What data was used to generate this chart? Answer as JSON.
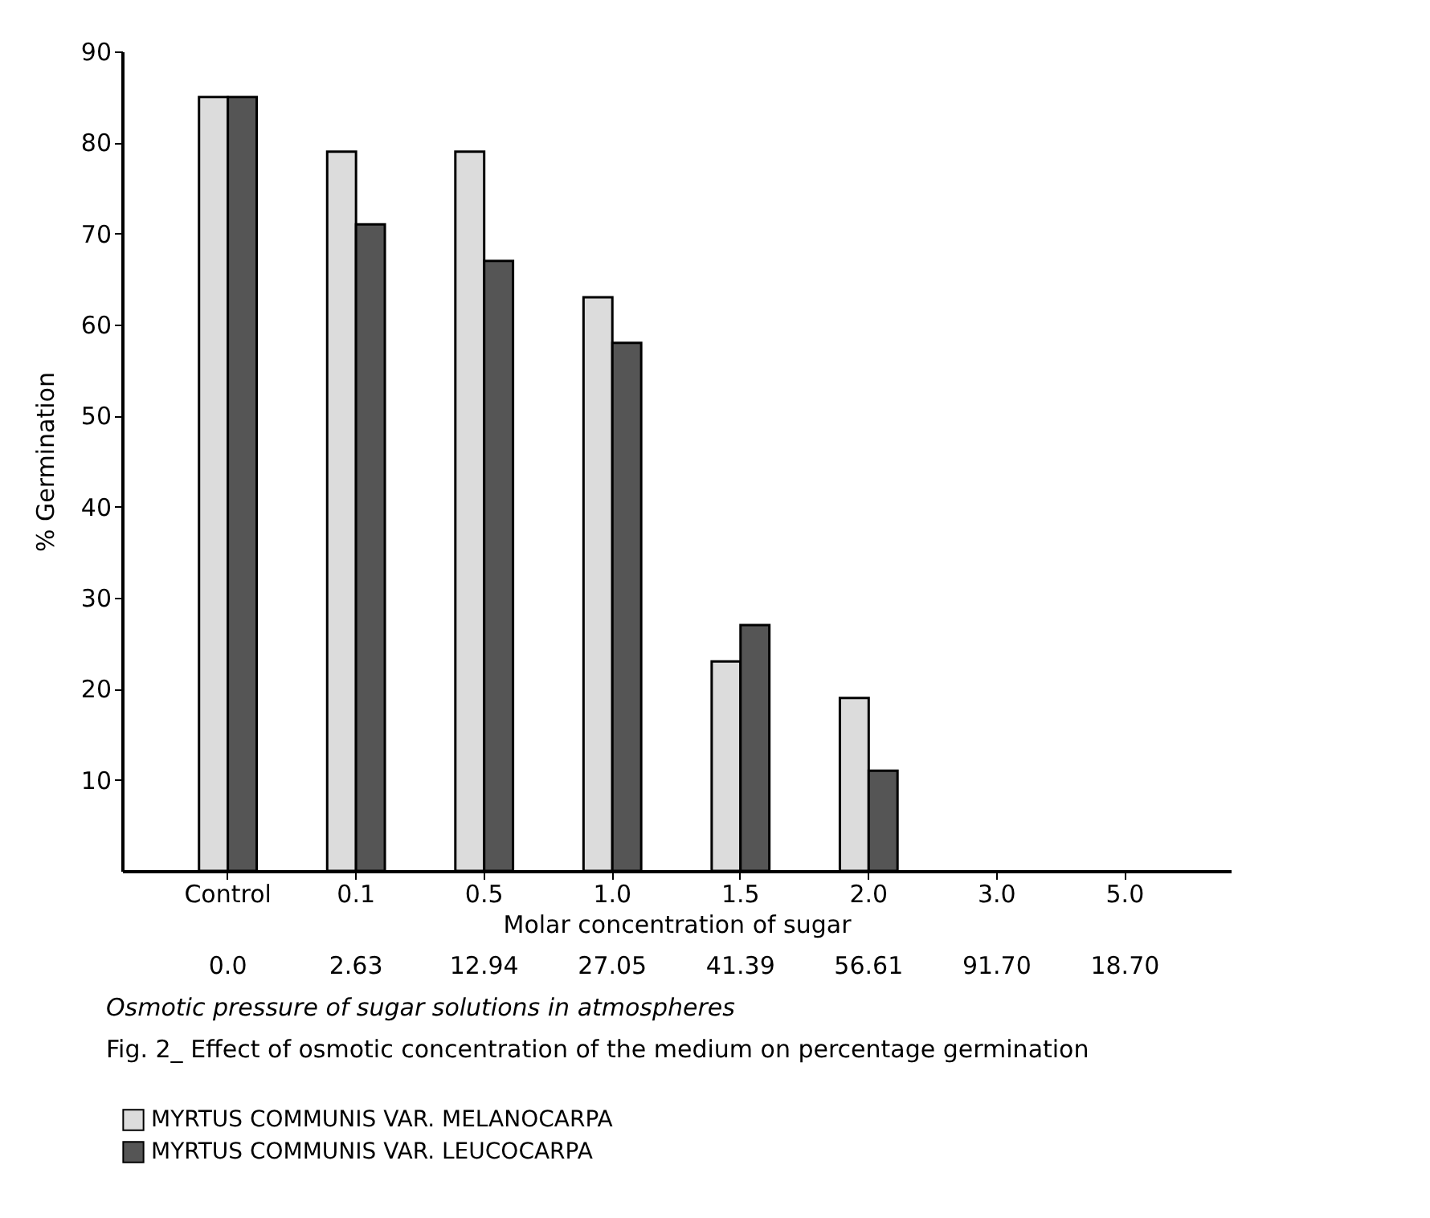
{
  "chart_data": {
    "type": "bar",
    "xlabel": "Molar concentration of sugar",
    "ylabel": "% Germination",
    "categories": [
      "Control",
      "0.1",
      "0.5",
      "1.0",
      "1.5",
      "2.0",
      "3.0",
      "5.0"
    ],
    "series": [
      {
        "name": "MYRTUS COMMUNIS VAR. MELANOCARPA",
        "color": "#dcdcdc",
        "values": [
          85,
          79,
          79,
          63,
          23,
          19,
          null,
          null
        ]
      },
      {
        "name": "MYRTUS COMMUNIS VAR. LEUCOCARPA",
        "color": "#555555",
        "values": [
          85,
          71,
          67,
          58,
          27,
          11,
          null,
          null
        ]
      }
    ],
    "ylim": [
      0,
      90
    ],
    "yticks": [
      10,
      20,
      30,
      40,
      50,
      60,
      70,
      80,
      90
    ],
    "grid": false,
    "legend": "bottom",
    "annotations": [
      "0.0",
      "2.63",
      "12.94",
      "27.05",
      "41.39",
      "56.61",
      "91.70",
      "18.70",
      "Osmotic pressure of sugar solutions in atmospheres",
      "Fig. 2_ Effect of osmotic concentration of the medium on percentage germination"
    ]
  }
}
